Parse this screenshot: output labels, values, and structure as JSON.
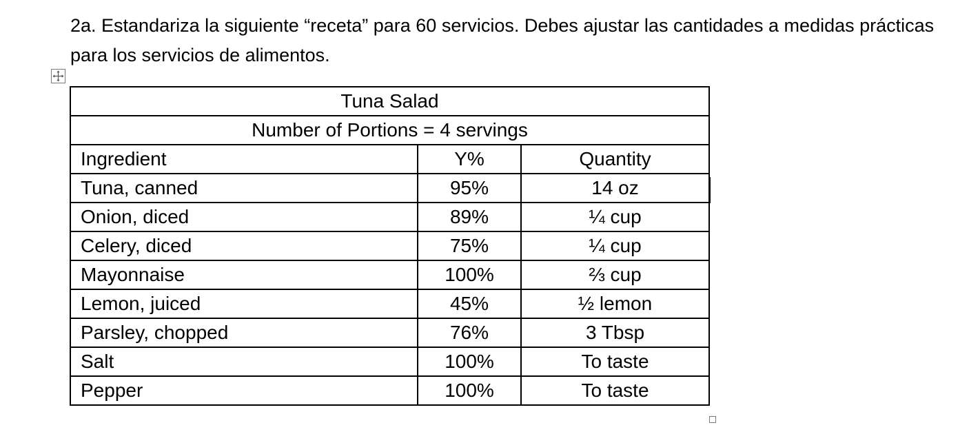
{
  "instructions": {
    "text": "2a. Estandariza la siguiente “receta” para 60 servicios.  Debes ajustar las cantidades a medidas prácticas para los servicios de alimentos."
  },
  "recipe_table": {
    "title": "Tuna Salad",
    "portions": "Number of Portions = 4 servings",
    "headers": {
      "ingredient": "Ingredient",
      "yield": "Y%",
      "quantity": "Quantity"
    },
    "rows": [
      {
        "ingredient": "Tuna, canned",
        "yield": "95%",
        "quantity": "14 oz"
      },
      {
        "ingredient": "Onion, diced",
        "yield": "89%",
        "quantity": "¼ cup"
      },
      {
        "ingredient": "Celery, diced",
        "yield": "75%",
        "quantity": "¼ cup"
      },
      {
        "ingredient": "Mayonnaise",
        "yield": "100%",
        "quantity": "⅔ cup"
      },
      {
        "ingredient": "Lemon, juiced",
        "yield": "45%",
        "quantity": "½ lemon"
      },
      {
        "ingredient": "Parsley, chopped",
        "yield": "76%",
        "quantity": "3 Tbsp"
      },
      {
        "ingredient": "Salt",
        "yield": "100%",
        "quantity": "To taste"
      },
      {
        "ingredient": "Pepper",
        "yield": "100%",
        "quantity": "To taste"
      }
    ]
  },
  "icons": {
    "table_move_handle": "move-arrows-icon",
    "table_resize_handle": "resize-handle-icon"
  }
}
